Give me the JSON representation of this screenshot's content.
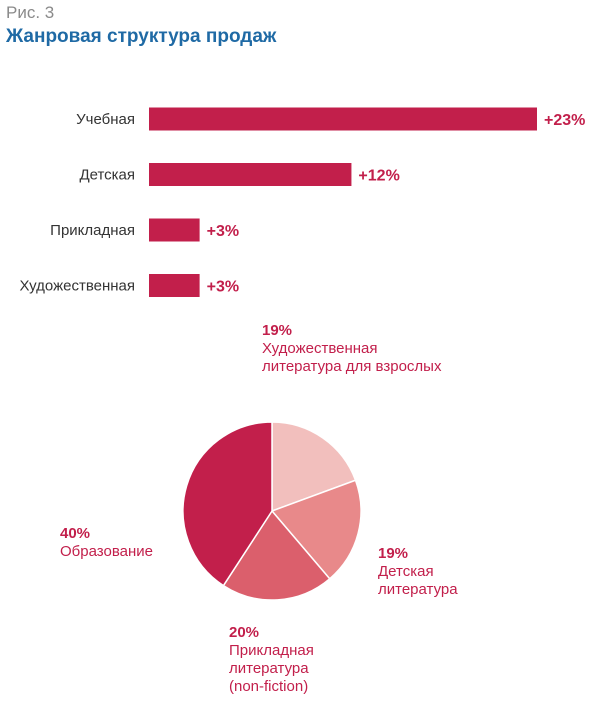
{
  "figure": {
    "label": "Рис. 3",
    "title": "Жанровая структура продаж"
  },
  "colors": {
    "bar": "#c21f4b",
    "title": "#1f6aa5",
    "label_red": "#c21f4b",
    "pie": [
      "#f2bfbd",
      "#e8898a",
      "#db5f6c",
      "#c21f4b"
    ]
  },
  "chart_data": [
    {
      "type": "bar",
      "orientation": "horizontal",
      "categories": [
        "Учебная",
        "Детская",
        "Прикладная",
        "Художественная"
      ],
      "values": [
        23,
        12,
        3,
        3
      ],
      "value_labels": [
        "+23%",
        "+12%",
        "+3%",
        "+3%"
      ],
      "unit": "%",
      "xlim": [
        0,
        23
      ]
    },
    {
      "type": "pie",
      "slices": [
        {
          "pct_label": "19%",
          "name": "Художественная\nлитература для взрослых",
          "value": 19
        },
        {
          "pct_label": "19%",
          "name": "Детская\nлитература",
          "value": 19
        },
        {
          "pct_label": "20%",
          "name": "Прикладная\nлитература\n(non-fiction)",
          "value": 20
        },
        {
          "pct_label": "40%",
          "name": "Образование",
          "value": 40
        }
      ],
      "start": "12 o'clock",
      "direction": "clockwise"
    }
  ]
}
